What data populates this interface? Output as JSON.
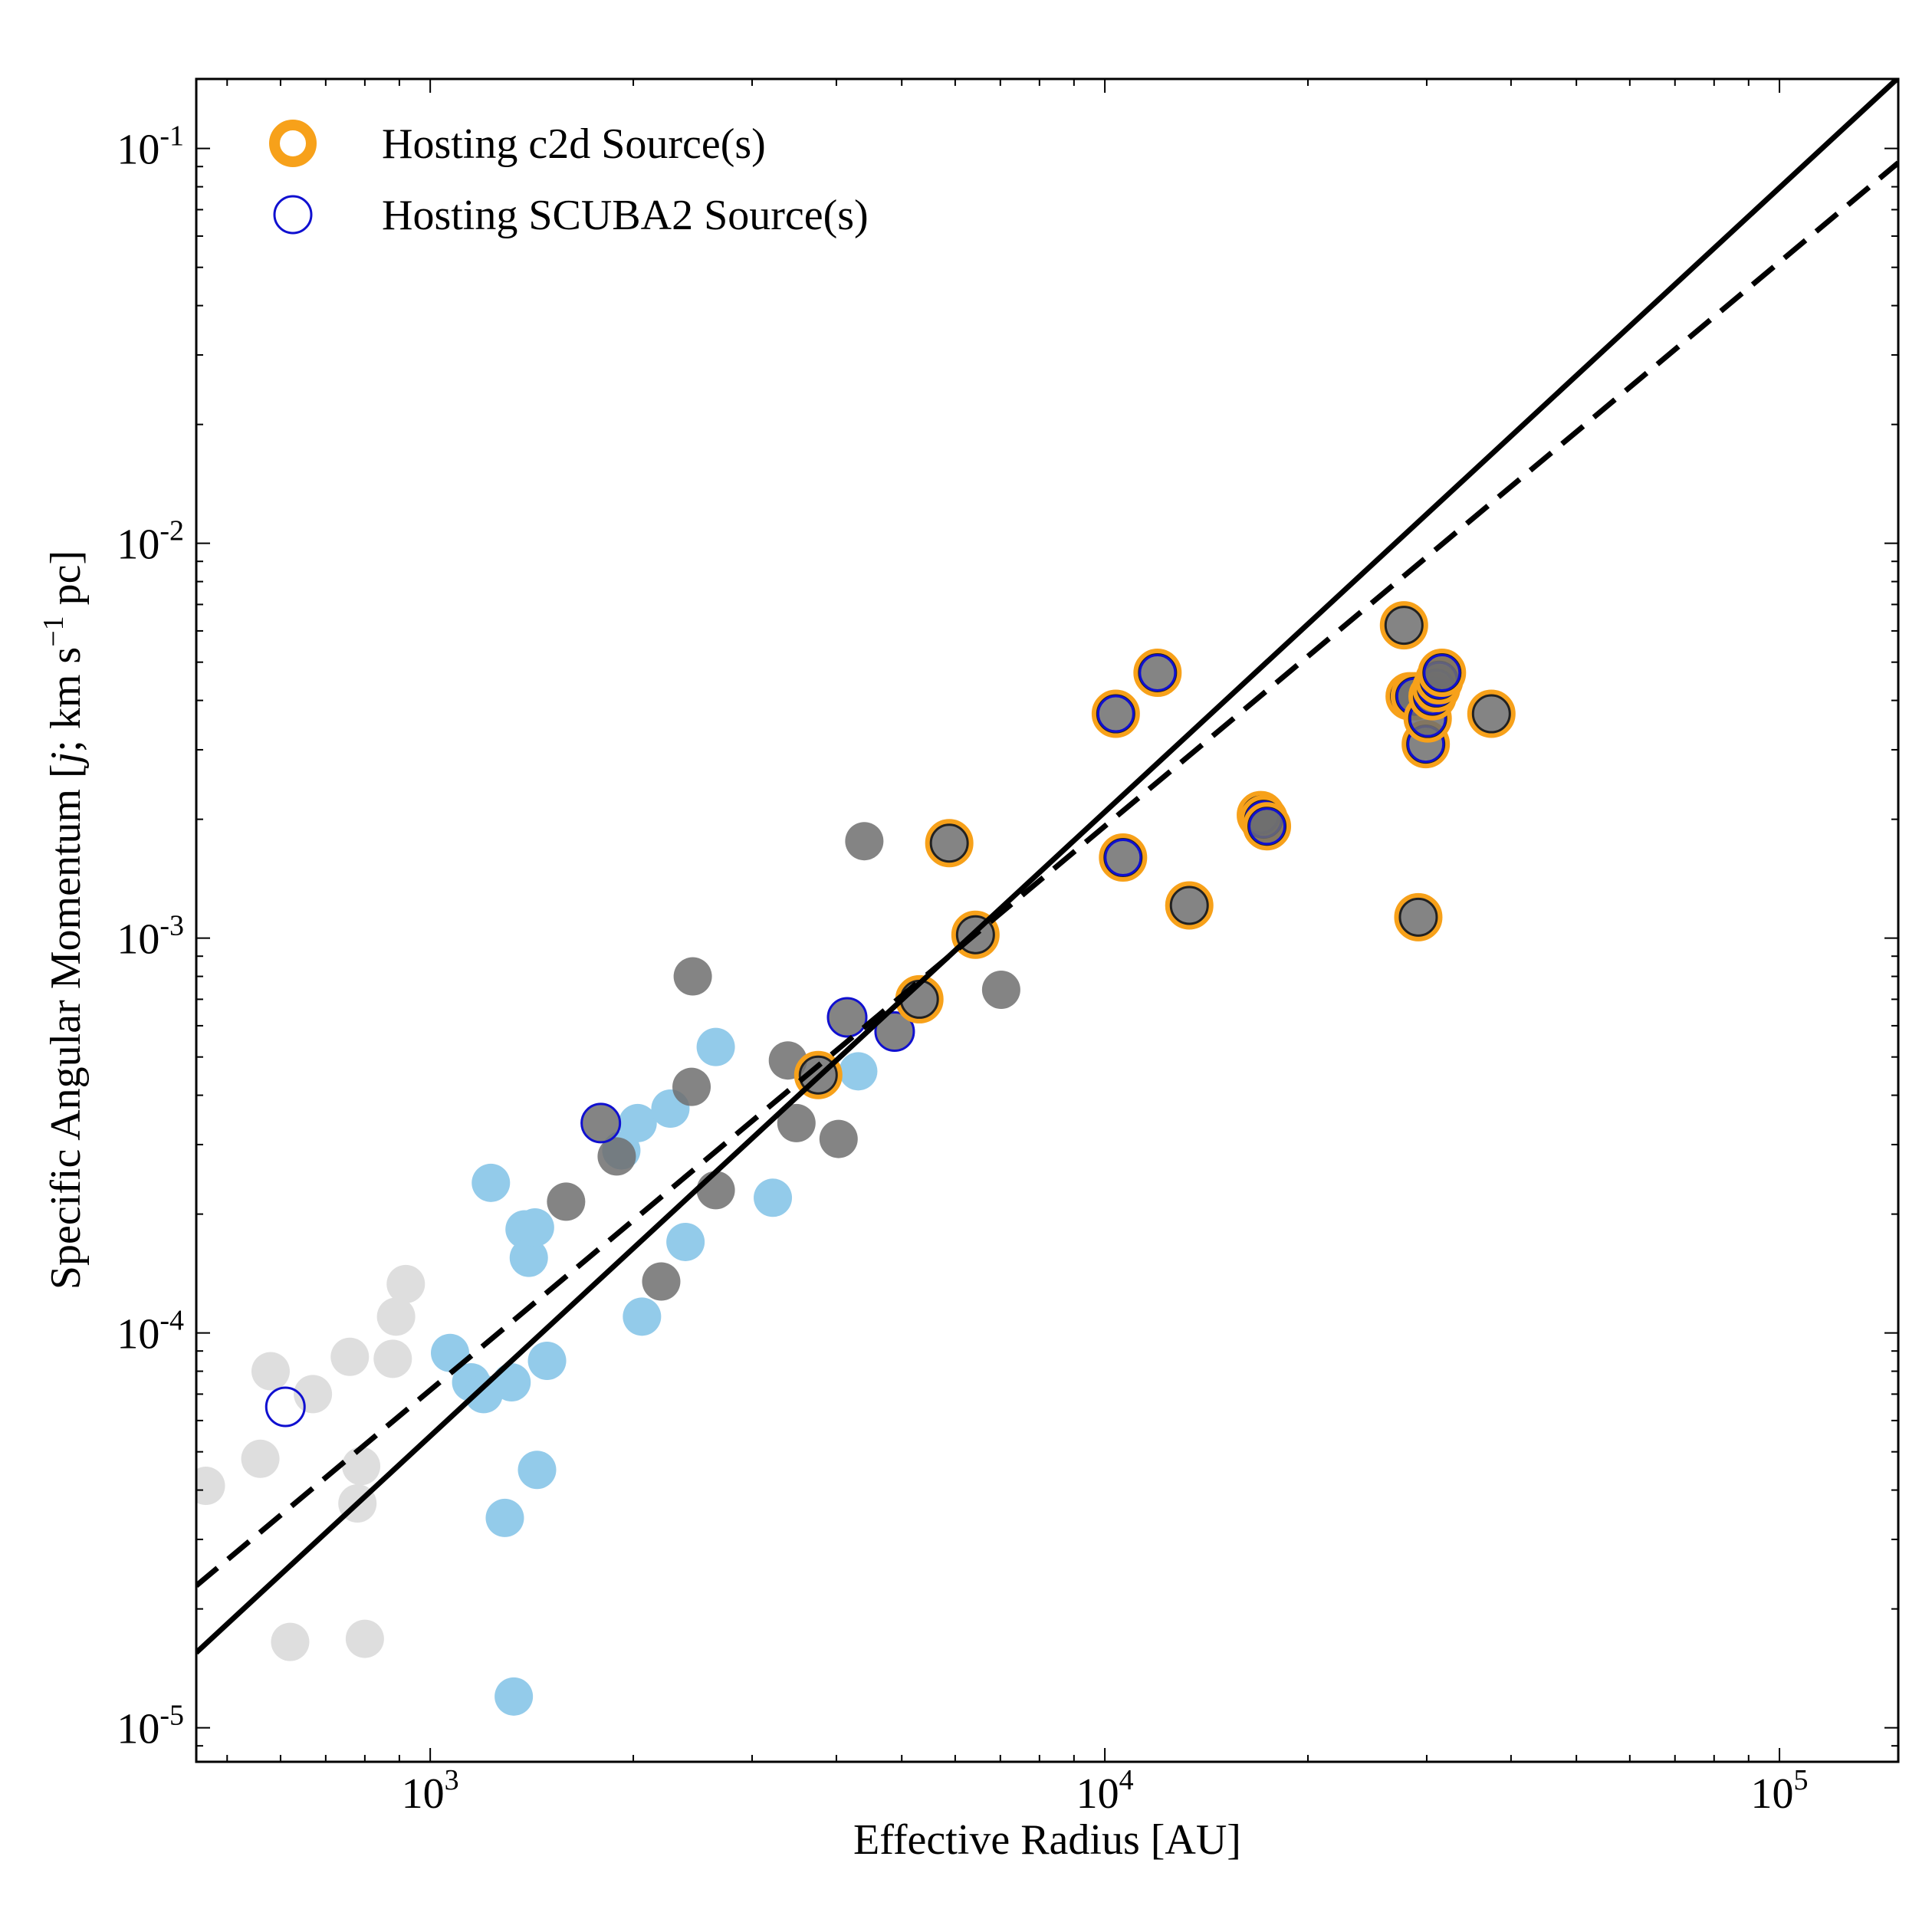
{
  "chart_data": {
    "type": "scatter",
    "xlabel": "Effective Radius [AU]",
    "ylabel_main": "Specific Angular Momentum [",
    "ylabel_j": "j",
    "ylabel_unit": "; km s",
    "ylabel_exp": "−1",
    "ylabel_tail": " pc]",
    "x_scale": "log",
    "y_scale": "log",
    "xlim": [
      450,
      150000
    ],
    "ylim": [
      8.2e-06,
      0.15
    ],
    "x_ticks": [
      {
        "value": 1000,
        "base": "10",
        "exp": "3"
      },
      {
        "value": 10000,
        "base": "10",
        "exp": "4"
      },
      {
        "value": 100000,
        "base": "10",
        "exp": "5"
      }
    ],
    "y_ticks": [
      {
        "value": 1e-05,
        "base": "10",
        "exp": "-5"
      },
      {
        "value": 0.0001,
        "base": "10",
        "exp": "-4"
      },
      {
        "value": 0.001,
        "base": "10",
        "exp": "-3"
      },
      {
        "value": 0.01,
        "base": "10",
        "exp": "-2"
      },
      {
        "value": 0.1,
        "base": "10",
        "exp": "-1"
      }
    ],
    "legend_position": "top-left",
    "legend": [
      {
        "label": "Hosting c2d Source(s)",
        "marker": "orange-ring"
      },
      {
        "label": "Hosting SCUBA2 Source(s)",
        "marker": "blue-ring"
      }
    ],
    "colors": {
      "lightgray": "#dedede",
      "lightblue": "#93cbea",
      "darkgray": "#6e6e6e",
      "orange": "#f7a11a",
      "blue": "#1010d0",
      "line": "#000000"
    },
    "lines": [
      {
        "style": "solid",
        "x": [
          450,
          150000
        ],
        "y": [
          1.55e-05,
          0.151
        ]
      },
      {
        "style": "dashed",
        "x": [
          450,
          150000
        ],
        "y": [
          2.29e-05,
          0.092
        ]
      }
    ],
    "series": [
      {
        "fill": "lightgray",
        "points": [
          [
            465,
            4.1e-05
          ],
          [
            560,
            4.8e-05
          ],
          [
            580,
            8e-05
          ],
          [
            620,
            1.65e-05
          ],
          [
            670,
            7e-05
          ],
          [
            760,
            8.7e-05
          ],
          [
            780,
            3.7e-05
          ],
          [
            790,
            4.6e-05
          ],
          [
            800,
            1.68e-05
          ],
          [
            880,
            8.6e-05
          ],
          [
            890,
            0.00011
          ],
          [
            920,
            0.000133
          ]
        ]
      },
      {
        "fill": "lightblue",
        "points": [
          [
            1070,
            8.9e-05
          ],
          [
            1150,
            7.5e-05
          ],
          [
            1200,
            7e-05
          ],
          [
            1230,
            0.00024
          ],
          [
            1290,
            3.4e-05
          ],
          [
            1320,
            7.5e-05
          ],
          [
            1330,
            1.2e-05
          ],
          [
            1380,
            0.000183
          ],
          [
            1400,
            0.000155
          ],
          [
            1430,
            0.000185
          ],
          [
            1440,
            4.5e-05
          ],
          [
            1490,
            8.5e-05
          ],
          [
            1920,
            0.00029
          ],
          [
            2030,
            0.00034
          ],
          [
            2060,
            0.00011
          ],
          [
            2270,
            0.00037
          ],
          [
            2390,
            0.00017
          ],
          [
            2650,
            0.00053
          ],
          [
            3220,
            0.00022
          ],
          [
            4310,
            0.00046
          ]
        ]
      },
      {
        "fill": "darkgray",
        "points": [
          [
            1590,
            0.000215
          ],
          [
            1890,
            0.00028
          ],
          [
            2200,
            0.000135
          ],
          [
            2440,
            0.00042
          ],
          [
            2450,
            0.0008
          ],
          [
            2650,
            0.00023
          ],
          [
            3390,
            0.00049
          ],
          [
            3490,
            0.00034
          ],
          [
            4030,
            0.00031
          ],
          [
            4400,
            0.00176
          ],
          [
            7020,
            0.00074
          ]
        ]
      },
      {
        "fill": "darkgray",
        "ring": "blue",
        "points": [
          [
            1790,
            0.00034
          ],
          [
            4150,
            0.00063
          ],
          [
            4880,
            0.00058
          ]
        ]
      },
      {
        "fill": "none",
        "ring": "blue",
        "points": [
          [
            610,
            6.5e-05
          ]
        ]
      },
      {
        "fill": "darkgray",
        "ring": "orange",
        "points": [
          [
            3760,
            0.00045
          ],
          [
            5310,
            0.0007
          ],
          [
            5880,
            0.00174
          ],
          [
            6430,
            0.00102
          ],
          [
            13340,
            0.00121
          ],
          [
            27760,
            0.0062
          ],
          [
            29150,
            0.00113
          ],
          [
            37410,
            0.0037
          ]
        ]
      },
      {
        "fill": "darkgray",
        "ring": "orange",
        "inner_ring": "blue",
        "points": [
          [
            10380,
            0.0037
          ],
          [
            10640,
            0.0016
          ],
          [
            11970,
            0.0047
          ],
          [
            17030,
            0.00205
          ],
          [
            17200,
            0.002
          ],
          [
            17390,
            0.00192
          ],
          [
            28300,
            0.0041
          ],
          [
            28800,
            0.0041
          ],
          [
            29900,
            0.0031
          ],
          [
            30100,
            0.0036
          ],
          [
            30600,
            0.0041
          ],
          [
            31000,
            0.0043
          ],
          [
            31300,
            0.0045
          ],
          [
            31600,
            0.0047
          ]
        ]
      }
    ]
  }
}
